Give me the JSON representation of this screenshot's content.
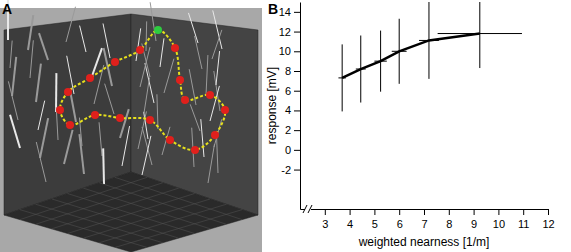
{
  "panel_labels": [
    "A",
    "B"
  ],
  "chart_data": {
    "type": "line",
    "x_label": "weighted nearness [1/m]",
    "y_label": "response [mV]",
    "x": [
      3.7,
      4.45,
      5.25,
      6.0,
      7.2,
      9.25
    ],
    "series": [
      {
        "color": "#000000",
        "values": [
          7.3,
          8.2,
          9.0,
          10.0,
          11.1,
          11.8
        ],
        "y_error": [
          3.4,
          3.4,
          3.1,
          3.3,
          3.9,
          3.5
        ],
        "x_error": [
          0.15,
          0.2,
          0.25,
          0.3,
          0.4,
          1.7
        ]
      }
    ],
    "xlim": [
      2,
      12
    ],
    "ylim": [
      -6,
      15
    ],
    "xticks": [
      3,
      4,
      5,
      6,
      7,
      8,
      9,
      10,
      11,
      12
    ],
    "yticks": [
      -2,
      0,
      2,
      4,
      6,
      8,
      10,
      12,
      14
    ],
    "grid": false
  }
}
